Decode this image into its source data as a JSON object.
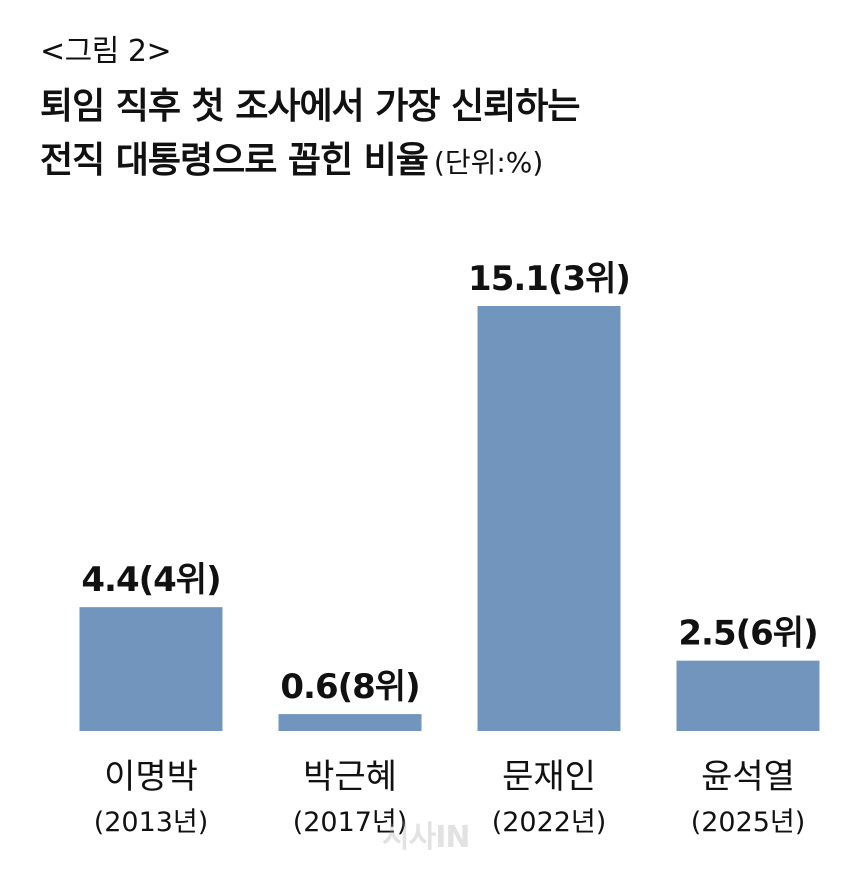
{
  "figure_label": "<그림 2>",
  "title_line1": "퇴임 직후 첫 조사에서 가장 신뢰하는",
  "title_line2": "전직 대통령으로 꼽힌 비율",
  "unit": "(단위:%)",
  "watermark": "시사IN",
  "colors": {
    "bar": "#7295bd",
    "text": "#111111",
    "background": "#ffffff"
  },
  "chart_data": {
    "type": "bar",
    "categories": [
      "이명박",
      "박근혜",
      "문재인",
      "윤석열"
    ],
    "years": [
      "(2013년)",
      "(2017년)",
      "(2022년)",
      "(2025년)"
    ],
    "values": [
      4.4,
      0.6,
      15.1,
      2.5
    ],
    "value_labels": [
      "4.4(4위)",
      "0.6(8위)",
      "15.1(3위)",
      "2.5(6위)"
    ],
    "ylim": [
      0,
      15.1
    ],
    "grid": false,
    "legend": "none",
    "axes_visible": false
  }
}
